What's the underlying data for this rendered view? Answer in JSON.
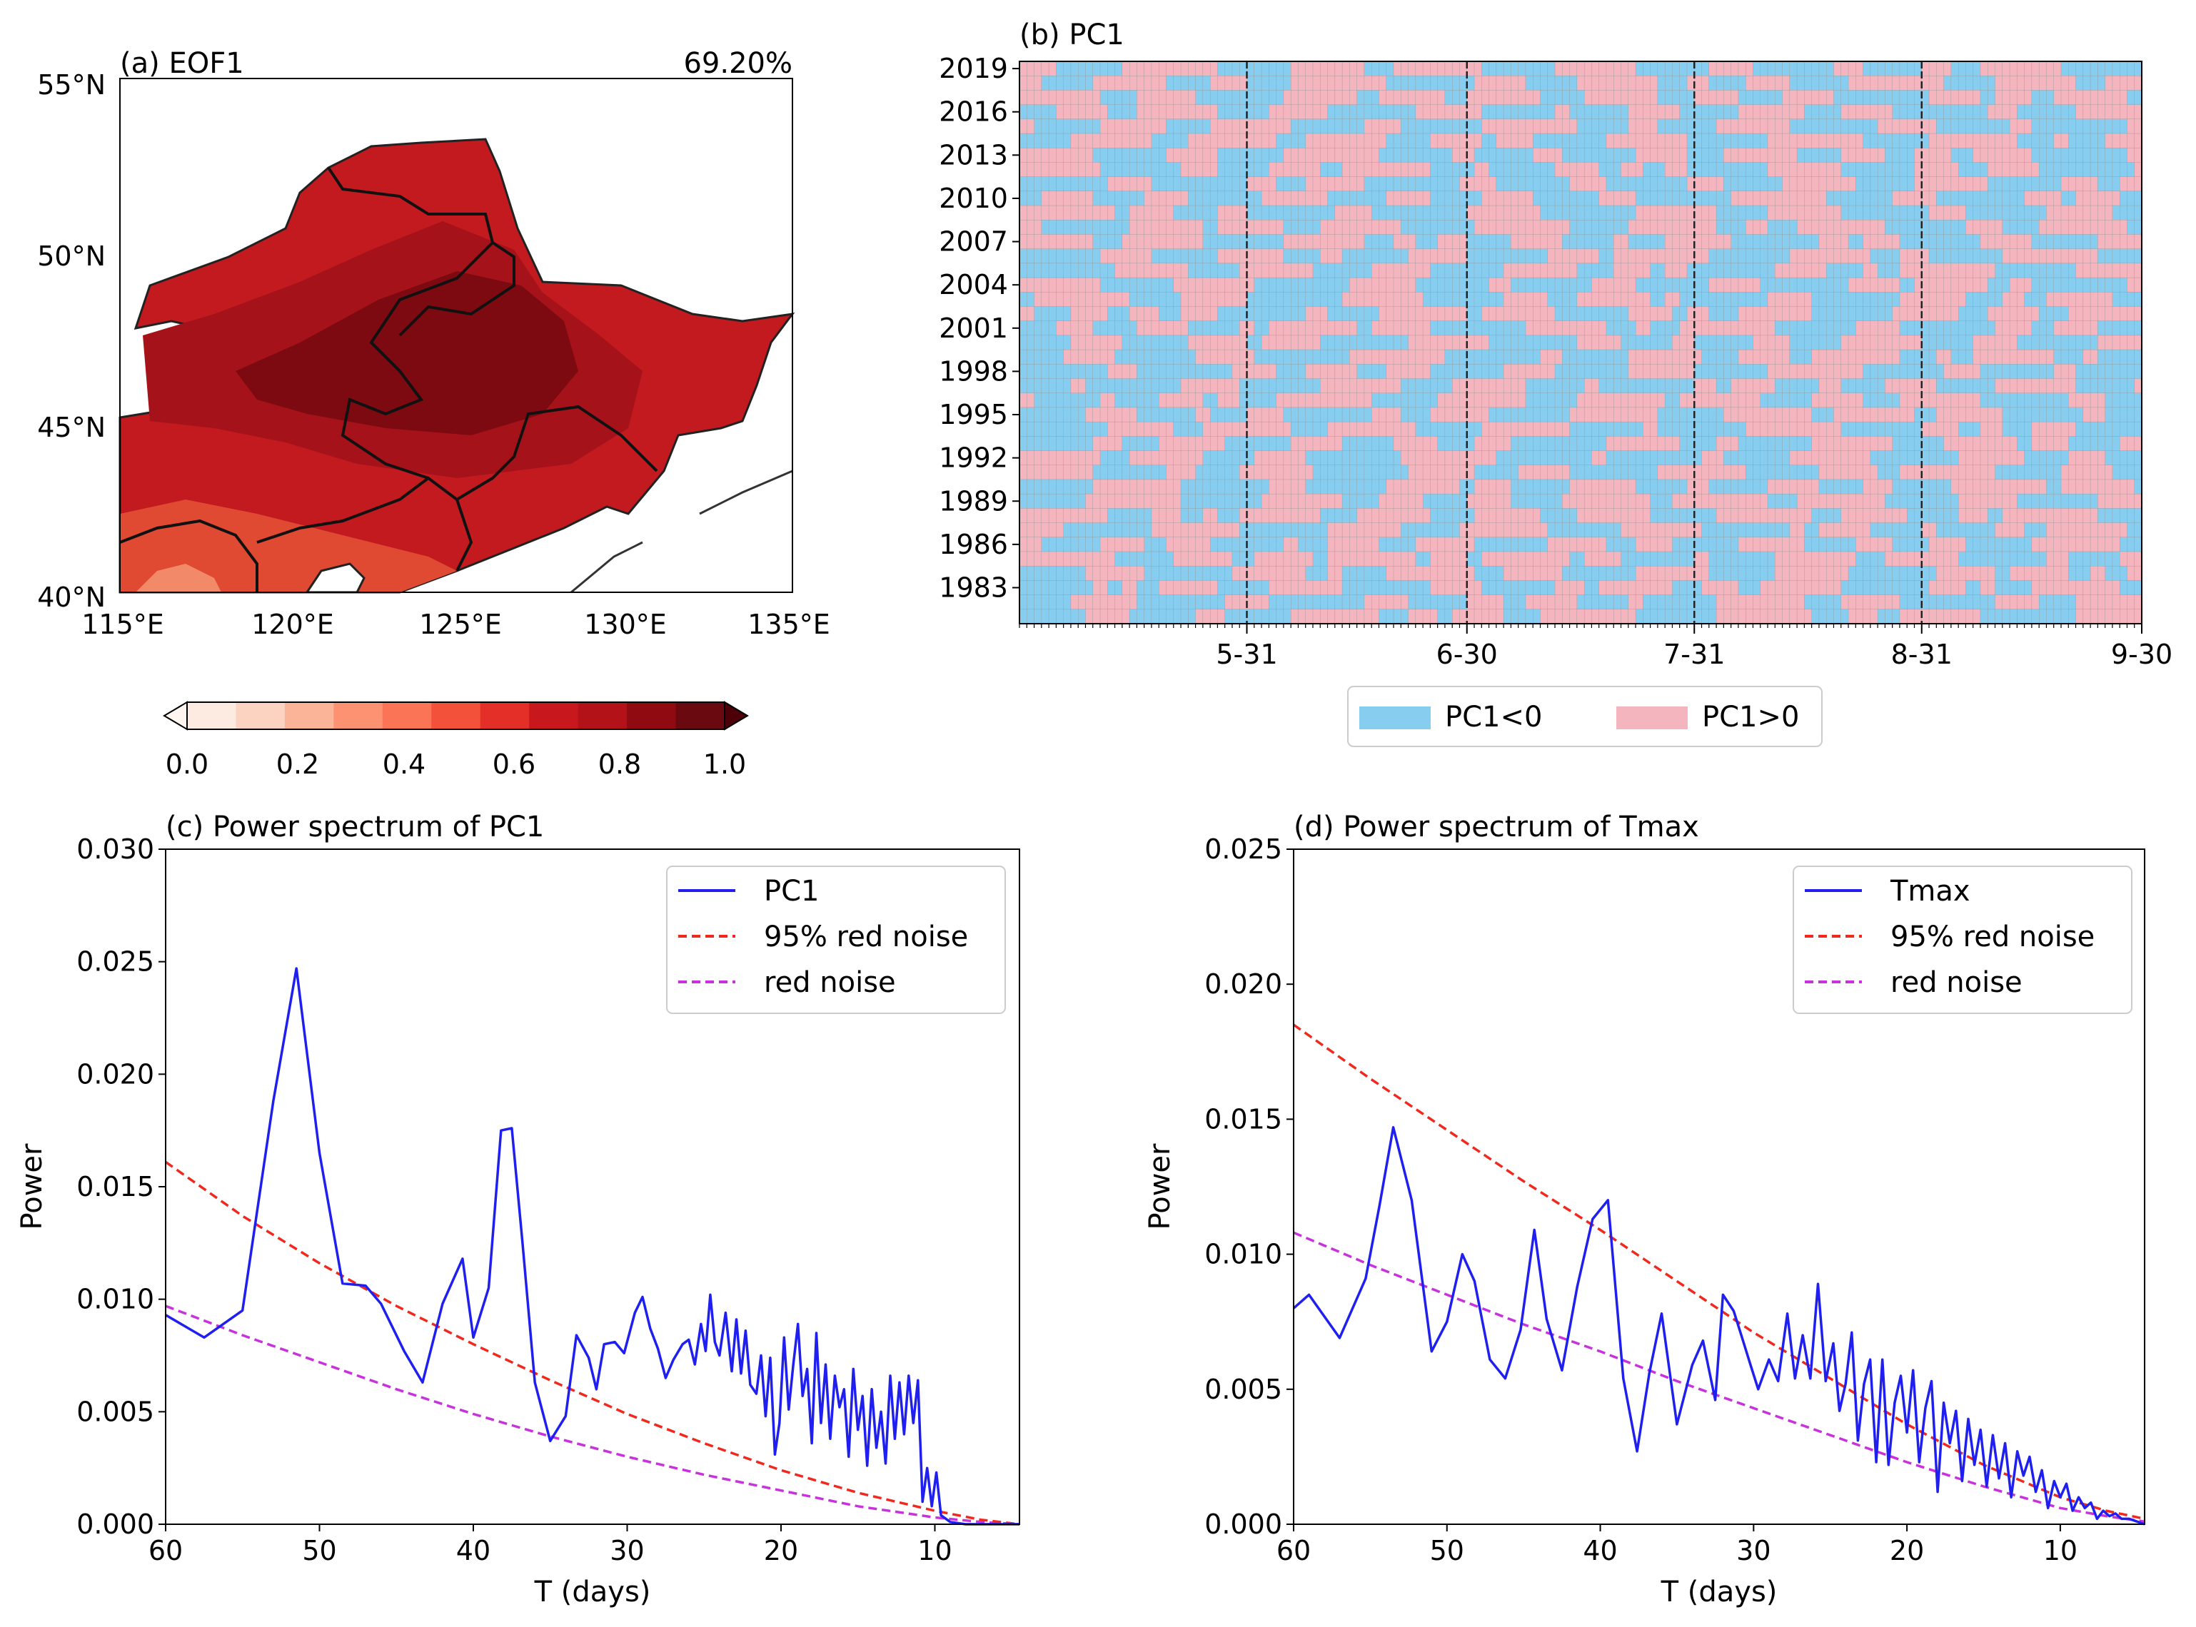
{
  "panels": {
    "a": {
      "title": "(a) EOF1",
      "variance": "69.20%",
      "lat_ticks": [
        "55°N",
        "50°N",
        "45°N",
        "40°N"
      ],
      "lon_ticks": [
        "115°E",
        "120°E",
        "125°E",
        "130°E",
        "135°E"
      ]
    },
    "b": {
      "title": "(b) PC1",
      "year_ticks": [
        "2019",
        "2016",
        "2013",
        "2010",
        "2007",
        "2004",
        "2001",
        "1998",
        "1995",
        "1992",
        "1989",
        "1986",
        "1983"
      ],
      "date_ticks": [
        "5-31",
        "6-30",
        "7-31",
        "8-31",
        "9-30"
      ],
      "legend_neg": "PC1<0",
      "legend_pos": "PC1>0"
    },
    "c": {
      "title": "(c) Power spectrum of PC1",
      "xlabel": "T (days)",
      "ylabel": "Power",
      "legend": [
        "PC1",
        "95% red noise",
        "red noise"
      ]
    },
    "d": {
      "title": "(d) Power spectrum of Tmax",
      "xlabel": "T (days)",
      "ylabel": "Power",
      "legend": [
        "Tmax",
        "95% red noise",
        "red noise"
      ]
    }
  },
  "colorbar": {
    "ticks": [
      "0.0",
      "0.2",
      "0.4",
      "0.6",
      "0.8",
      "1.0"
    ],
    "colors": [
      "#fdebe2",
      "#fcd3c1",
      "#fcb499",
      "#fc9272",
      "#fb7456",
      "#f4513b",
      "#e32f27",
      "#c9181d",
      "#b21218",
      "#900a12",
      "#6a0a10"
    ]
  },
  "colors": {
    "neg": "#87cdf0",
    "pos": "#f5b5bf",
    "spectrum": "#1f1ff0",
    "red_noise_95": "#f0281e",
    "red_noise": "#c832dc"
  },
  "chart_data": [
    {
      "type": "heatmap",
      "title": "(b) PC1",
      "years": [
        1981,
        2019
      ],
      "days": 153,
      "x_tick_labels": [
        "5-31",
        "6-30",
        "7-31",
        "8-31",
        "9-30"
      ],
      "legend": [
        "PC1<0",
        "PC1>0"
      ]
    },
    {
      "type": "line",
      "title": "(c) Power spectrum of PC1",
      "xlabel": "T (days)",
      "ylabel": "Power",
      "xlim": [
        60,
        4.5
      ],
      "ylim": [
        0,
        0.03
      ],
      "xticks": [
        60,
        50,
        40,
        30,
        20,
        10
      ],
      "yticks": [
        0.0,
        0.005,
        0.01,
        0.015,
        0.02,
        0.025,
        0.03
      ],
      "series": [
        {
          "name": "PC1",
          "x": [
            60,
            57.5,
            55,
            53,
            51.5,
            50,
            48.5,
            47,
            46,
            44.5,
            43.3,
            42,
            40.7,
            40,
            39,
            38.2,
            37.5,
            36.8,
            36,
            35,
            34,
            33.3,
            32.5,
            32,
            31.5,
            30.8,
            30.2,
            29.5,
            29,
            28.5,
            28,
            27.5,
            27,
            26.4,
            26,
            25.6,
            25.2,
            24.9,
            24.6,
            24.3,
            24,
            23.6,
            23.2,
            22.9,
            22.6,
            22.3,
            22,
            21.6,
            21.3,
            21,
            20.7,
            20.4,
            20.1,
            19.8,
            19.5,
            19.2,
            18.9,
            18.6,
            18.3,
            18,
            17.7,
            17.4,
            17.1,
            16.8,
            16.5,
            16.2,
            15.9,
            15.6,
            15.3,
            15,
            14.7,
            14.4,
            14.1,
            13.8,
            13.5,
            13.2,
            12.9,
            12.6,
            12.3,
            12,
            11.7,
            11.4,
            11.1,
            10.8,
            10.5,
            10.2,
            9.9,
            9.6,
            9,
            8,
            7,
            6,
            5,
            4.5
          ],
          "y": [
            0.0093,
            0.0083,
            0.0095,
            0.0188,
            0.0247,
            0.0165,
            0.0107,
            0.0106,
            0.0098,
            0.0077,
            0.0063,
            0.0098,
            0.0118,
            0.0083,
            0.0105,
            0.0175,
            0.0176,
            0.0125,
            0.0063,
            0.0037,
            0.0048,
            0.0084,
            0.0074,
            0.006,
            0.008,
            0.0081,
            0.0076,
            0.0094,
            0.0101,
            0.0087,
            0.0078,
            0.0065,
            0.0073,
            0.008,
            0.0082,
            0.0071,
            0.0089,
            0.0077,
            0.0102,
            0.0081,
            0.0075,
            0.0094,
            0.0068,
            0.0091,
            0.0067,
            0.0086,
            0.0062,
            0.0058,
            0.0075,
            0.0048,
            0.0074,
            0.0031,
            0.0045,
            0.0083,
            0.0051,
            0.0071,
            0.0089,
            0.0057,
            0.0069,
            0.0036,
            0.0085,
            0.0045,
            0.0071,
            0.0038,
            0.0066,
            0.0052,
            0.006,
            0.003,
            0.0069,
            0.0042,
            0.0057,
            0.0026,
            0.006,
            0.0034,
            0.005,
            0.0027,
            0.0066,
            0.0038,
            0.0063,
            0.004,
            0.0066,
            0.0045,
            0.0064,
            0.001,
            0.0025,
            0.0008,
            0.0023,
            0.0004,
            0.0001,
            0.0,
            0.0,
            0.0,
            0.0,
            0.0
          ]
        },
        {
          "name": "95% red noise",
          "x": [
            60,
            55,
            50,
            45,
            40,
            35,
            30,
            25,
            20,
            15,
            10,
            7,
            4.5
          ],
          "y": [
            0.0161,
            0.0137,
            0.0116,
            0.0097,
            0.008,
            0.0064,
            0.0049,
            0.0036,
            0.0024,
            0.0014,
            0.0006,
            0.0002,
            0.0
          ]
        },
        {
          "name": "red noise",
          "x": [
            60,
            55,
            50,
            45,
            40,
            35,
            30,
            25,
            20,
            15,
            10,
            7,
            4.5
          ],
          "y": [
            0.0097,
            0.0084,
            0.0072,
            0.006,
            0.0049,
            0.0039,
            0.003,
            0.0022,
            0.0015,
            0.0008,
            0.0003,
            0.0001,
            0.0
          ]
        }
      ]
    },
    {
      "type": "line",
      "title": "(d) Power spectrum of Tmax",
      "xlabel": "T (days)",
      "ylabel": "Power",
      "xlim": [
        60,
        4.5
      ],
      "ylim": [
        0,
        0.025
      ],
      "xticks": [
        60,
        50,
        40,
        30,
        20,
        10
      ],
      "yticks": [
        0.0,
        0.005,
        0.01,
        0.015,
        0.02,
        0.025
      ],
      "series": [
        {
          "name": "Tmax",
          "x": [
            60,
            59,
            57,
            55.3,
            54.4,
            53.5,
            52.3,
            51,
            50,
            49,
            48.2,
            47.2,
            46.2,
            45.2,
            44.3,
            43.5,
            42.5,
            41.5,
            40.5,
            39.5,
            38.5,
            37.6,
            36.8,
            36,
            35,
            34,
            33.3,
            32.5,
            32,
            31.3,
            30.8,
            30.2,
            29.7,
            29,
            28.4,
            27.8,
            27.3,
            26.8,
            26.3,
            25.8,
            25.3,
            24.8,
            24.4,
            24,
            23.6,
            23.2,
            22.8,
            22.4,
            22,
            21.6,
            21.2,
            20.8,
            20.4,
            20,
            19.6,
            19.2,
            18.8,
            18.4,
            18,
            17.6,
            17.2,
            16.8,
            16.4,
            16,
            15.6,
            15.2,
            14.8,
            14.4,
            14,
            13.6,
            13.2,
            12.8,
            12.4,
            12,
            11.6,
            11.2,
            10.8,
            10.4,
            10,
            9.6,
            9.2,
            8.8,
            8.4,
            8,
            7.6,
            7.2,
            6.8,
            6.4,
            6,
            5.5,
            5,
            4.5
          ],
          "y": [
            0.008,
            0.0085,
            0.0069,
            0.0091,
            0.0118,
            0.0147,
            0.012,
            0.0064,
            0.0075,
            0.01,
            0.009,
            0.0061,
            0.0054,
            0.0072,
            0.0109,
            0.0076,
            0.0057,
            0.0088,
            0.0113,
            0.012,
            0.0054,
            0.0027,
            0.0056,
            0.0078,
            0.0037,
            0.0059,
            0.0068,
            0.0046,
            0.0085,
            0.0079,
            0.007,
            0.0059,
            0.005,
            0.0061,
            0.0053,
            0.0078,
            0.0054,
            0.007,
            0.0054,
            0.0089,
            0.0053,
            0.0067,
            0.0042,
            0.0052,
            0.0071,
            0.0031,
            0.0052,
            0.0061,
            0.0023,
            0.0061,
            0.0022,
            0.0045,
            0.0055,
            0.0034,
            0.0057,
            0.0023,
            0.0043,
            0.0053,
            0.0012,
            0.0045,
            0.003,
            0.0042,
            0.0016,
            0.0039,
            0.0022,
            0.0035,
            0.0014,
            0.0033,
            0.0017,
            0.003,
            0.001,
            0.0027,
            0.0018,
            0.0025,
            0.0012,
            0.002,
            0.0006,
            0.0016,
            0.001,
            0.0015,
            0.0005,
            0.001,
            0.0006,
            0.0008,
            0.0002,
            0.0005,
            0.0003,
            0.0004,
            0.0002,
            0.0002,
            0.0001,
            0.0
          ]
        },
        {
          "name": "95% red noise",
          "x": [
            60,
            55,
            50,
            45,
            40,
            35,
            30,
            25,
            20,
            15,
            10,
            7,
            4.5
          ],
          "y": [
            0.0185,
            0.0165,
            0.0146,
            0.0127,
            0.0109,
            0.009,
            0.0071,
            0.0054,
            0.0037,
            0.0022,
            0.001,
            0.0005,
            0.0002
          ]
        },
        {
          "name": "red noise",
          "x": [
            60,
            55,
            50,
            45,
            40,
            35,
            30,
            25,
            20,
            15,
            10,
            7,
            4.5
          ],
          "y": [
            0.0108,
            0.0096,
            0.0085,
            0.0074,
            0.0064,
            0.0053,
            0.0043,
            0.0033,
            0.0023,
            0.0014,
            0.0006,
            0.0003,
            0.0001
          ]
        }
      ]
    }
  ]
}
